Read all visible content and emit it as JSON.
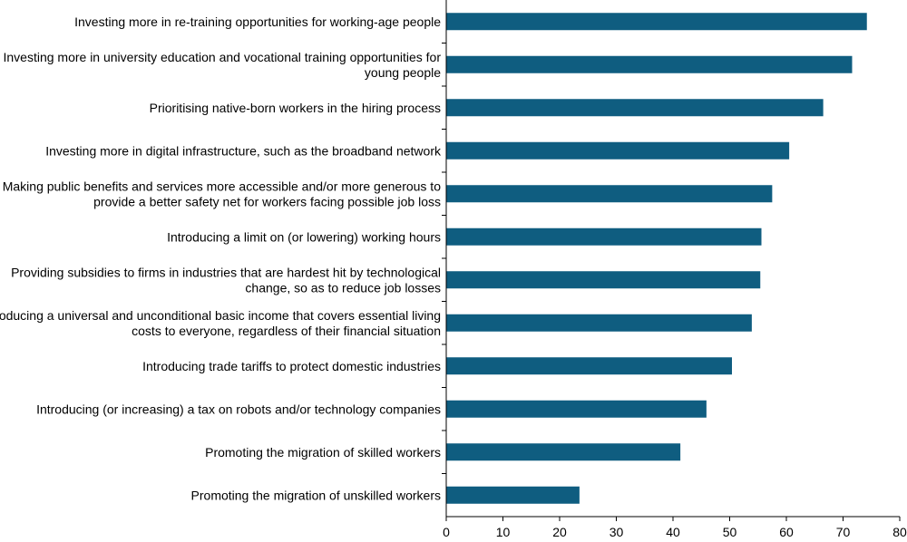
{
  "chart_data": {
    "type": "bar",
    "orientation": "horizontal",
    "categories": [
      [
        "Investing more in re-training opportunities for working-age people"
      ],
      [
        "Investing more in university education and vocational training opportunities for",
        "young people"
      ],
      [
        "Prioritising native-born workers in the hiring process"
      ],
      [
        "Investing more in digital infrastructure, such as the broadband network"
      ],
      [
        "Making public benefits and services more accessible and/or more generous to",
        "provide a better safety net for workers facing possible job loss"
      ],
      [
        "Introducing a limit on (or lowering) working hours"
      ],
      [
        "Providing subsidies to firms in industries that are hardest hit by technological",
        "change, so as to reduce job losses"
      ],
      [
        "Introducing a universal and unconditional basic income that covers essential living",
        "costs to everyone, regardless of their financial situation"
      ],
      [
        "Introducing trade tariffs to protect domestic industries"
      ],
      [
        "Introducing (or increasing) a tax on robots and/or technology companies"
      ],
      [
        "Promoting the migration of skilled workers"
      ],
      [
        "Promoting the migration of unskilled workers"
      ]
    ],
    "values": [
      74.2,
      71.6,
      66.5,
      60.5,
      57.5,
      55.6,
      55.4,
      53.9,
      50.4,
      45.9,
      41.3,
      23.5
    ],
    "xlim": [
      0,
      80
    ],
    "xticks": [
      0,
      10,
      20,
      30,
      40,
      50,
      60,
      70,
      80
    ],
    "bar_color": "#0f5d80",
    "grid": false,
    "title": "",
    "xlabel": "",
    "ylabel": ""
  }
}
